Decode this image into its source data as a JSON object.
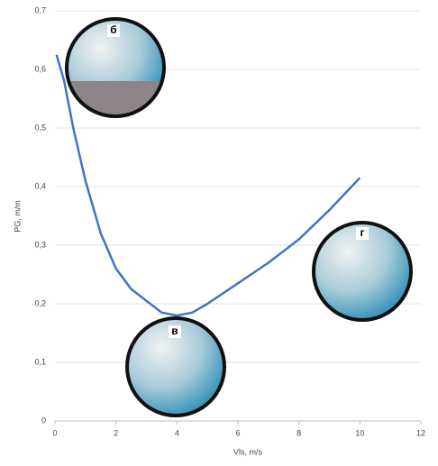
{
  "chart_data": {
    "type": "line",
    "x_label": "Vls, m/s",
    "y_label": "PG, m/m",
    "x": [
      0.05,
      0.3,
      0.6,
      1,
      1.5,
      2,
      2.5,
      3,
      3.5,
      4,
      4.5,
      5,
      6,
      7,
      8,
      9,
      10
    ],
    "values": [
      0.625,
      0.58,
      0.5,
      0.41,
      0.32,
      0.26,
      0.225,
      0.205,
      0.185,
      0.18,
      0.185,
      0.2,
      0.235,
      0.27,
      0.31,
      0.36,
      0.415
    ],
    "color": "#4472c4",
    "xlim": [
      0,
      12
    ],
    "xticks": [
      0,
      2,
      4,
      6,
      8,
      10,
      12
    ],
    "ylim": [
      0,
      0.7
    ],
    "yticks": [
      0,
      {
        "value": 0.1,
        "label": "0,1"
      },
      {
        "value": 0.2,
        "label": "0,2"
      },
      {
        "value": 0.3,
        "label": "0,3"
      },
      {
        "value": 0.4,
        "label": "0,4"
      },
      {
        "value": 0.5,
        "label": "0,5"
      },
      {
        "value": 0.6,
        "label": "0,6"
      },
      {
        "value": 0.7,
        "label": "0,7"
      }
    ],
    "grid": true,
    "annotations": [
      "б",
      "в",
      "г"
    ]
  }
}
